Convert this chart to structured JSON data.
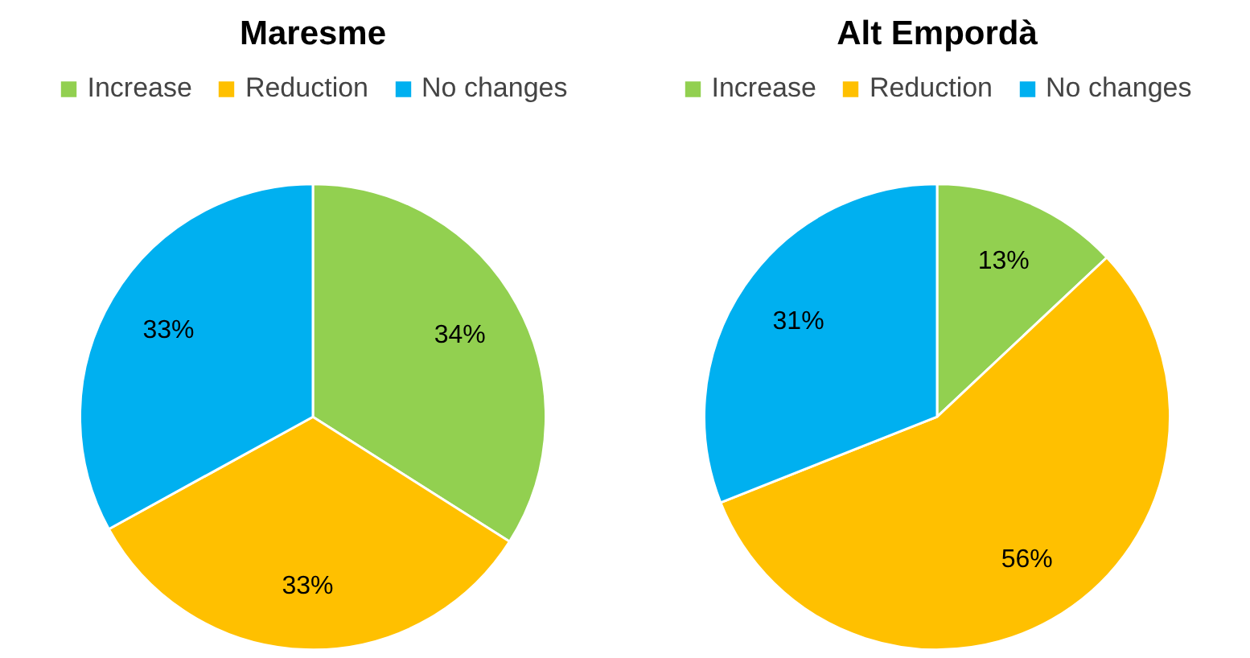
{
  "chart_data": [
    {
      "type": "pie",
      "title": "Maresme",
      "categories": [
        "Increase",
        "Reduction",
        "No changes"
      ],
      "values": [
        34,
        33,
        33
      ],
      "colors": [
        "#92d050",
        "#ffc000",
        "#00b0f0"
      ],
      "value_labels": [
        "34%",
        "33%",
        "33%"
      ],
      "legend": "top"
    },
    {
      "type": "pie",
      "title": "Alt Empordà",
      "categories": [
        "Increase",
        "Reduction",
        "No changes"
      ],
      "values": [
        13,
        56,
        31
      ],
      "colors": [
        "#92d050",
        "#ffc000",
        "#00b0f0"
      ],
      "value_labels": [
        "13%",
        "56%",
        "31%"
      ],
      "legend": "top"
    }
  ]
}
